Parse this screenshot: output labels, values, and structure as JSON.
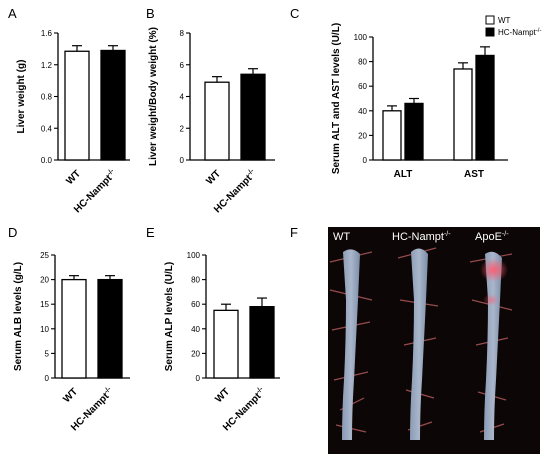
{
  "figure": {
    "panel_letters": [
      "A",
      "B",
      "C",
      "D",
      "E",
      "F"
    ],
    "legend": {
      "wt": "WT",
      "hc": "HC-Nampt",
      "hc_sup": "-/-"
    },
    "photos": {
      "labels": [
        {
          "main": "WT",
          "sup": ""
        },
        {
          "main": "HC-Nampt",
          "sup": "-/-"
        },
        {
          "main": "ApoE",
          "sup": "-/-"
        }
      ]
    }
  },
  "chart_data": [
    {
      "panel": "A",
      "type": "bar",
      "ylabel": "Liver weight (g)",
      "categories": [
        {
          "main": "WT",
          "sup": ""
        },
        {
          "main": "HC-Nampt",
          "sup": "-/-"
        }
      ],
      "values": [
        1.37,
        1.38
      ],
      "errors": [
        0.07,
        0.06
      ],
      "fills": [
        "#ffffff",
        "#000000"
      ],
      "ylim": [
        0,
        1.6
      ],
      "yticks": [
        "0.0",
        "0.4",
        "0.8",
        "1.2",
        "1.6"
      ]
    },
    {
      "panel": "B",
      "type": "bar",
      "ylabel": "Liver weight/Body weight (%)",
      "categories": [
        {
          "main": "WT",
          "sup": ""
        },
        {
          "main": "HC-Nampt",
          "sup": "-/-"
        }
      ],
      "values": [
        4.9,
        5.4
      ],
      "errors": [
        0.35,
        0.35
      ],
      "fills": [
        "#ffffff",
        "#000000"
      ],
      "ylim": [
        0,
        8
      ],
      "yticks": [
        "0",
        "2",
        "4",
        "6",
        "8"
      ]
    },
    {
      "panel": "C",
      "type": "bar",
      "ylabel": "Serum ALT and AST  levels (U/L)",
      "categories": [
        "ALT",
        "AST"
      ],
      "series": [
        {
          "name": "WT",
          "values": [
            40,
            74
          ],
          "errors": [
            4,
            5
          ],
          "fill": "#ffffff"
        },
        {
          "name": "HC-Nampt-/-",
          "values": [
            46,
            85
          ],
          "errors": [
            4,
            7
          ],
          "fill": "#000000"
        }
      ],
      "ylim": [
        0,
        100
      ],
      "yticks": [
        "0",
        "20",
        "40",
        "60",
        "80",
        "100"
      ],
      "legend_position": "top-right"
    },
    {
      "panel": "D",
      "type": "bar",
      "ylabel": "Serum ALB levels (g/L)",
      "categories": [
        {
          "main": "WT",
          "sup": ""
        },
        {
          "main": "HC-Nampt",
          "sup": "-/-"
        }
      ],
      "values": [
        20.0,
        20.0
      ],
      "errors": [
        0.8,
        0.8
      ],
      "fills": [
        "#ffffff",
        "#000000"
      ],
      "ylim": [
        0,
        25
      ],
      "yticks": [
        "0",
        "5",
        "10",
        "15",
        "20",
        "25"
      ]
    },
    {
      "panel": "E",
      "type": "bar",
      "ylabel": "Serum ALP levels (U/L)",
      "categories": [
        {
          "main": "WT",
          "sup": ""
        },
        {
          "main": "HC-Nampt",
          "sup": "-/-"
        }
      ],
      "values": [
        55,
        58
      ],
      "errors": [
        5,
        7
      ],
      "fills": [
        "#ffffff",
        "#000000"
      ],
      "ylim": [
        0,
        100
      ],
      "yticks": [
        "0",
        "20",
        "40",
        "60",
        "80",
        "100"
      ]
    }
  ]
}
